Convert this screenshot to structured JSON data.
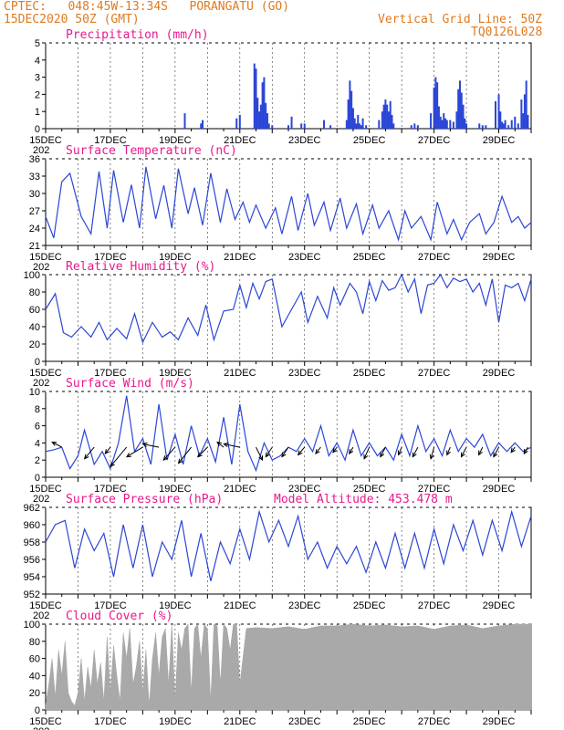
{
  "header": {
    "station": "CPTEC:   048:45W-13:34S   PORANGATU (GO)",
    "run": "15DEC2020 50Z (GMT)",
    "grid_note": "Vertical Grid Line: 50Z",
    "code": "TQ0126L028"
  },
  "colors": {
    "line": "#2b46d6",
    "bar": "#2b46d6",
    "cloud": "#a9a9a9",
    "title": "#e8198b",
    "header": "#e07a1f"
  },
  "x_axis": {
    "labels": [
      "15DEC",
      "17DEC",
      "19DEC",
      "21DEC",
      "23DEC",
      "25DEC",
      "27DEC",
      "29DEC"
    ],
    "label_days": [
      0,
      2,
      4,
      6,
      8,
      10,
      12,
      14
    ],
    "start_day_cut": "202",
    "range_days": [
      0,
      15
    ]
  },
  "chart_data": [
    {
      "type": "bar",
      "title": "Precipitation (mm/h)",
      "ylim": [
        0,
        5
      ],
      "yticks": [
        0,
        1,
        2,
        3,
        4,
        5
      ],
      "x": [
        4.3,
        4.8,
        4.85,
        5.9,
        6.0,
        6.45,
        6.5,
        6.55,
        6.6,
        6.65,
        6.7,
        6.75,
        6.8,
        6.85,
        6.9,
        7.0,
        7.5,
        7.6,
        7.9,
        8.0,
        8.6,
        8.8,
        9.3,
        9.35,
        9.4,
        9.45,
        9.5,
        9.55,
        9.6,
        9.65,
        9.7,
        9.75,
        9.8,
        9.9,
        10.3,
        10.4,
        10.45,
        10.5,
        10.55,
        10.6,
        10.65,
        10.7,
        10.75,
        11.3,
        11.4,
        11.5,
        11.9,
        12.0,
        12.05,
        12.1,
        12.15,
        12.2,
        12.25,
        12.3,
        12.35,
        12.4,
        12.5,
        12.6,
        12.7,
        12.75,
        12.8,
        12.85,
        12.9,
        12.95,
        13.0,
        13.4,
        13.5,
        13.6,
        13.9,
        14.0,
        14.05,
        14.1,
        14.15,
        14.2,
        14.3,
        14.4,
        14.5,
        14.6,
        14.7,
        14.75,
        14.8,
        14.85,
        14.9
      ],
      "values": [
        0.9,
        0.3,
        0.5,
        0.6,
        0.8,
        3.8,
        3.5,
        1.8,
        1.0,
        1.4,
        2.7,
        3.0,
        1.5,
        0.9,
        0.3,
        0.2,
        0.2,
        0.7,
        0.3,
        0.3,
        0.5,
        0.2,
        0.5,
        1.7,
        2.8,
        2.2,
        1.2,
        0.6,
        0.3,
        0.8,
        0.3,
        0.2,
        0.6,
        0.2,
        0.5,
        1.0,
        1.4,
        1.7,
        1.4,
        1.0,
        1.6,
        0.8,
        0.3,
        0.2,
        0.3,
        0.2,
        0.9,
        2.4,
        3.0,
        2.7,
        1.3,
        0.7,
        0.5,
        0.9,
        0.6,
        0.5,
        0.5,
        0.4,
        1.0,
        2.3,
        2.8,
        2.1,
        1.4,
        0.6,
        0.3,
        0.3,
        0.2,
        0.2,
        1.6,
        2.0,
        1.0,
        0.4,
        0.3,
        0.5,
        0.2,
        0.5,
        0.7,
        0.3,
        1.7,
        0.9,
        2.0,
        2.8,
        0.8
      ]
    },
    {
      "type": "line",
      "title": "Surface Temperature (nC)",
      "ylim": [
        21,
        36
      ],
      "yticks": [
        21,
        24,
        27,
        30,
        33,
        36
      ],
      "x": [
        0,
        0.25,
        0.5,
        0.75,
        1.1,
        1.4,
        1.65,
        1.9,
        2.1,
        2.4,
        2.65,
        2.9,
        3.1,
        3.4,
        3.65,
        3.9,
        4.1,
        4.4,
        4.6,
        4.85,
        5.1,
        5.4,
        5.6,
        5.85,
        6.1,
        6.3,
        6.5,
        6.8,
        7.1,
        7.3,
        7.6,
        7.8,
        8.1,
        8.3,
        8.6,
        8.8,
        9.1,
        9.3,
        9.6,
        9.8,
        10.1,
        10.3,
        10.6,
        10.9,
        11.1,
        11.3,
        11.6,
        11.9,
        12.1,
        12.4,
        12.6,
        12.85,
        13.1,
        13.4,
        13.6,
        13.85,
        14.1,
        14.4,
        14.6,
        14.8,
        15.0
      ],
      "values": [
        26.0,
        22.3,
        32.0,
        33.5,
        26.0,
        23.0,
        33.8,
        24.0,
        34.0,
        25.0,
        31.5,
        24.0,
        34.6,
        25.6,
        31.4,
        24.0,
        34.3,
        26.5,
        31.0,
        24.5,
        33.5,
        25.0,
        30.8,
        25.5,
        28.5,
        25.0,
        28.0,
        24.0,
        27.5,
        23.0,
        29.5,
        23.6,
        30.0,
        24.5,
        28.5,
        23.6,
        29.2,
        24.0,
        28.2,
        23.0,
        28.0,
        24.0,
        27.0,
        22.0,
        27.0,
        24.0,
        26.0,
        22.0,
        28.5,
        23.0,
        25.5,
        22.0,
        25.0,
        26.5,
        23.0,
        25.0,
        29.5,
        25.0,
        26.0,
        24.0,
        25.0
      ]
    },
    {
      "type": "line",
      "title": "Relative Humidity (%)",
      "ylim": [
        0,
        100
      ],
      "yticks": [
        0,
        20,
        40,
        60,
        80,
        100
      ],
      "x": [
        0,
        0.3,
        0.55,
        0.8,
        1.1,
        1.4,
        1.65,
        1.9,
        2.2,
        2.5,
        2.75,
        3.0,
        3.3,
        3.6,
        3.85,
        4.1,
        4.4,
        4.7,
        4.95,
        5.2,
        5.5,
        5.8,
        6.0,
        6.2,
        6.4,
        6.6,
        6.8,
        7.0,
        7.3,
        7.6,
        7.9,
        8.1,
        8.4,
        8.7,
        8.9,
        9.1,
        9.4,
        9.6,
        9.8,
        10.0,
        10.2,
        10.4,
        10.6,
        10.8,
        11.0,
        11.2,
        11.4,
        11.6,
        11.8,
        12.0,
        12.2,
        12.4,
        12.6,
        12.8,
        13.0,
        13.2,
        13.4,
        13.6,
        13.8,
        14.0,
        14.2,
        14.4,
        14.6,
        14.8,
        15.0
      ],
      "values": [
        60,
        78,
        33,
        28,
        40,
        28,
        45,
        25,
        38,
        26,
        55,
        22,
        45,
        28,
        34,
        25,
        50,
        30,
        65,
        25,
        58,
        60,
        88,
        62,
        90,
        72,
        92,
        95,
        40,
        60,
        80,
        45,
        75,
        50,
        85,
        65,
        90,
        80,
        55,
        92,
        70,
        93,
        82,
        85,
        100,
        80,
        95,
        55,
        88,
        90,
        100,
        85,
        96,
        92,
        95,
        80,
        90,
        65,
        95,
        45,
        88,
        85,
        90,
        70,
        95
      ]
    },
    {
      "type": "line",
      "title": "Surface Wind (m/s)",
      "ylim": [
        0,
        10
      ],
      "yticks": [
        0,
        2,
        4,
        6,
        8,
        10
      ],
      "x": [
        0,
        0.25,
        0.5,
        0.75,
        1.0,
        1.2,
        1.5,
        1.75,
        2.0,
        2.25,
        2.5,
        2.75,
        3.0,
        3.25,
        3.5,
        3.75,
        4.0,
        4.25,
        4.5,
        4.75,
        5.0,
        5.25,
        5.5,
        5.75,
        6.0,
        6.25,
        6.5,
        6.75,
        7.0,
        7.25,
        7.5,
        7.75,
        8.0,
        8.25,
        8.5,
        8.75,
        9.0,
        9.25,
        9.5,
        9.75,
        10.0,
        10.25,
        10.5,
        10.75,
        11.0,
        11.25,
        11.5,
        11.75,
        12.0,
        12.25,
        12.5,
        12.75,
        13.0,
        13.25,
        13.5,
        13.75,
        14.0,
        14.25,
        14.5,
        14.75,
        15.0
      ],
      "values": [
        3.0,
        3.2,
        3.5,
        1.0,
        2.5,
        5.5,
        1.5,
        3.0,
        1.0,
        4.0,
        9.5,
        3.0,
        4.5,
        1.5,
        8.5,
        2.0,
        5.0,
        1.5,
        6.0,
        2.5,
        4.5,
        1.8,
        7.0,
        1.5,
        8.5,
        3.0,
        0.8,
        4.0,
        2.0,
        2.5,
        3.5,
        3.0,
        4.5,
        3.0,
        6.0,
        2.5,
        4.0,
        2.0,
        5.5,
        2.5,
        4.0,
        2.5,
        3.5,
        2.0,
        5.0,
        2.5,
        6.0,
        3.0,
        4.5,
        2.5,
        5.5,
        3.0,
        4.5,
        3.5,
        5.0,
        2.5,
        4.0,
        3.0,
        4.0,
        3.0,
        3.5
      ],
      "barbs_x": [
        0.5,
        1.5,
        2.0,
        2.5,
        3.0,
        3.5,
        4.0,
        4.5,
        5.0,
        5.5,
        6.0,
        6.5,
        7.0,
        7.5,
        8.0,
        8.5,
        9.0,
        9.5,
        10.0,
        10.5,
        11.0,
        11.5,
        12.0,
        12.5,
        13.0,
        13.5,
        14.0,
        14.5,
        14.9
      ],
      "barbs_u": [
        -1.5,
        -1.5,
        -0.8,
        -2.5,
        -2.5,
        -2.5,
        -1.8,
        -2.0,
        -1.5,
        -1.0,
        -2.5,
        1.0,
        -1.0,
        -1.0,
        -1.0,
        -0.8,
        -0.6,
        -0.6,
        -0.8,
        -0.8,
        -0.5,
        -0.8,
        -0.5,
        -0.5,
        -0.8,
        -0.6,
        -0.8,
        -0.6,
        -0.6
      ],
      "barbs_v": [
        0.8,
        -1.8,
        -1.0,
        -3.0,
        -1.5,
        0.5,
        -2.0,
        -2.5,
        -1.5,
        0.8,
        0.5,
        -2.0,
        -1.5,
        -1.5,
        -1.2,
        -1.0,
        -0.8,
        -1.0,
        -1.8,
        -1.5,
        -1.2,
        -1.5,
        -1.8,
        -1.2,
        -1.5,
        -1.2,
        -1.5,
        -0.8,
        -1.0
      ]
    },
    {
      "type": "line",
      "title": "Surface Pressure (hPa)",
      "annotation": "Model Altitude: 453.478 m",
      "ylim": [
        952,
        962
      ],
      "yticks": [
        952,
        954,
        956,
        958,
        960,
        962
      ],
      "x": [
        0,
        0.3,
        0.6,
        0.9,
        1.2,
        1.5,
        1.8,
        2.1,
        2.4,
        2.7,
        3.0,
        3.3,
        3.6,
        3.9,
        4.2,
        4.5,
        4.8,
        5.1,
        5.4,
        5.7,
        6.0,
        6.3,
        6.6,
        6.9,
        7.2,
        7.5,
        7.8,
        8.1,
        8.4,
        8.7,
        9.0,
        9.3,
        9.6,
        9.9,
        10.2,
        10.5,
        10.8,
        11.1,
        11.4,
        11.7,
        12.0,
        12.3,
        12.6,
        12.9,
        13.2,
        13.5,
        13.8,
        14.1,
        14.4,
        14.7,
        15.0
      ],
      "values": [
        958.0,
        960.0,
        960.5,
        955.0,
        959.5,
        957.0,
        959.0,
        954.0,
        960.0,
        955.0,
        960.0,
        954.0,
        958.0,
        956.0,
        960.5,
        954.0,
        959.0,
        953.5,
        958.0,
        955.5,
        959.5,
        956.0,
        961.5,
        958.0,
        960.5,
        957.5,
        961.0,
        956.0,
        958.0,
        955.0,
        957.5,
        955.5,
        957.5,
        954.5,
        958.0,
        955.0,
        959.0,
        955.0,
        959.0,
        955.0,
        959.5,
        955.5,
        960.0,
        957.0,
        960.5,
        956.5,
        960.5,
        957.0,
        961.5,
        957.5,
        961.0
      ]
    },
    {
      "type": "area",
      "title": "Cloud Cover (%)",
      "ylim": [
        0,
        100
      ],
      "yticks": [
        0,
        20,
        40,
        60,
        80,
        100
      ],
      "x": [
        0,
        0.1,
        0.2,
        0.3,
        0.4,
        0.5,
        0.6,
        0.7,
        0.8,
        0.9,
        1.0,
        1.1,
        1.2,
        1.3,
        1.4,
        1.5,
        1.6,
        1.7,
        1.8,
        1.9,
        2.0,
        2.1,
        2.2,
        2.3,
        2.4,
        2.5,
        2.6,
        2.7,
        2.8,
        2.9,
        3.0,
        3.1,
        3.2,
        3.3,
        3.4,
        3.5,
        3.6,
        3.7,
        3.8,
        3.9,
        4.0,
        4.1,
        4.2,
        4.3,
        4.4,
        4.5,
        4.6,
        4.7,
        4.8,
        4.9,
        5.0,
        5.1,
        5.2,
        5.3,
        5.4,
        5.5,
        5.6,
        5.7,
        5.8,
        5.9,
        6.0,
        6.2,
        6.5,
        7.0,
        7.5,
        8.0,
        8.5,
        9.0,
        9.5,
        10.0,
        10.5,
        11.0,
        11.5,
        12.0,
        12.5,
        13.0,
        13.5,
        14.0,
        14.5,
        15.0
      ],
      "values": [
        5,
        30,
        60,
        15,
        70,
        40,
        80,
        20,
        10,
        5,
        20,
        60,
        10,
        50,
        25,
        70,
        30,
        55,
        10,
        85,
        20,
        75,
        40,
        10,
        90,
        60,
        95,
        30,
        50,
        80,
        20,
        70,
        5,
        60,
        90,
        40,
        85,
        95,
        30,
        100,
        10,
        90,
        70,
        95,
        100,
        20,
        95,
        100,
        60,
        100,
        95,
        10,
        100,
        98,
        30,
        100,
        95,
        70,
        100,
        100,
        30,
        95,
        96,
        95,
        97,
        94,
        98,
        98,
        100,
        98,
        99,
        97,
        98,
        94,
        98,
        99,
        95,
        98,
        100,
        100
      ]
    }
  ]
}
